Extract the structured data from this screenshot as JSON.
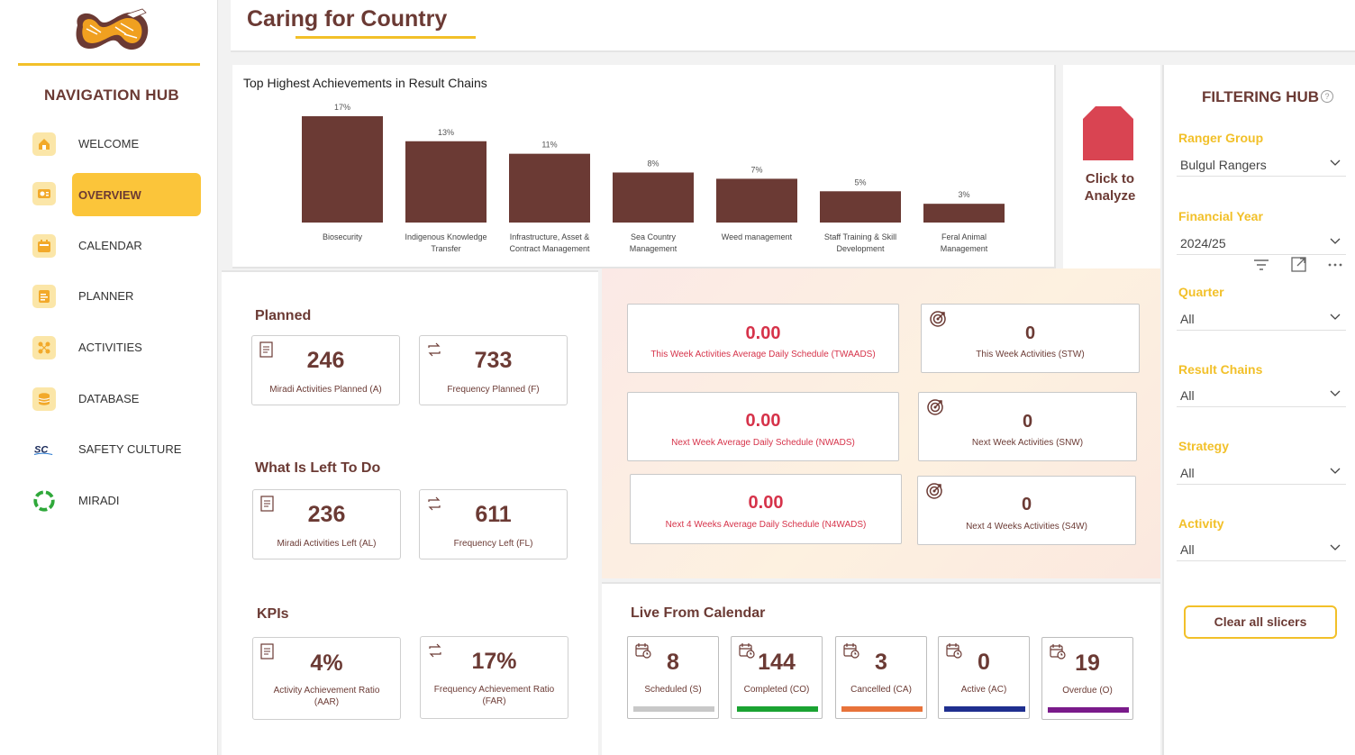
{
  "nav": {
    "title": "NAVIGATION HUB",
    "items": [
      {
        "label": "WELCOME",
        "icon": "home-icon"
      },
      {
        "label": "OVERVIEW",
        "icon": "dashboard-icon",
        "active": true
      },
      {
        "label": "CALENDAR",
        "icon": "calendar-icon"
      },
      {
        "label": "PLANNER",
        "icon": "planner-icon"
      },
      {
        "label": "ACTIVITIES",
        "icon": "activities-icon"
      },
      {
        "label": "DATABASE",
        "icon": "database-icon"
      },
      {
        "label": "SAFETY CULTURE",
        "icon": "safety-culture-logo-icon"
      },
      {
        "label": "MIRADI",
        "icon": "miradi-logo-icon"
      }
    ]
  },
  "header": {
    "title": "Caring for Country"
  },
  "chart_data": {
    "type": "bar",
    "title": "Top Highest Achievements in Result Chains",
    "categories": [
      [
        "Biosecurity"
      ],
      [
        "Indigenous Knowledge",
        "Transfer"
      ],
      [
        "Infrastructure, Asset &",
        "Contract Management"
      ],
      [
        "Sea Country",
        "Management"
      ],
      [
        "Weed management"
      ],
      [
        "Staff Training & Skill",
        "Development"
      ],
      [
        "Feral Animal",
        "Management"
      ]
    ],
    "values": [
      17,
      13,
      11,
      8,
      7,
      5,
      3
    ],
    "value_labels": [
      "17%",
      "13%",
      "11%",
      "8%",
      "7%",
      "5%",
      "3%"
    ],
    "unit": "%",
    "color": "#6b3a34"
  },
  "analyze": {
    "label_line1": "Click to",
    "label_line2": "Analyze",
    "color": "#d94452"
  },
  "planned": {
    "title": "Planned",
    "cards": [
      {
        "value": "246",
        "label": "Miradi Activities Planned (A)",
        "icon": "document-icon"
      },
      {
        "value": "733",
        "label": "Frequency Planned (F)",
        "icon": "repeat-icon"
      }
    ]
  },
  "left_todo": {
    "title": "What Is Left To Do",
    "cards": [
      {
        "value": "236",
        "label": "Miradi Activities Left (AL)",
        "icon": "document-icon"
      },
      {
        "value": "611",
        "label": "Frequency Left (FL)",
        "icon": "repeat-icon"
      }
    ]
  },
  "kpis": {
    "title": "KPIs",
    "cards": [
      {
        "value": "4%",
        "label_line1": "Activity Achievement Ratio",
        "label_line2": "(AAR)",
        "icon": "document-icon"
      },
      {
        "value": "17%",
        "label_line1": "Frequency Achievement Ratio",
        "label_line2": "(FAR)",
        "icon": "repeat-icon"
      }
    ]
  },
  "schedule": {
    "rows": [
      {
        "avg_value": "0.00",
        "avg_label": "This Week Activities Average Daily Schedule (TWAADS)",
        "count_value": "0",
        "count_label": "This Week Activities (STW)"
      },
      {
        "avg_value": "0.00",
        "avg_label": "Next Week Average Daily Schedule (NWADS)",
        "count_value": "0",
        "count_label": "Next Week Activities (SNW)"
      },
      {
        "avg_value": "0.00",
        "avg_label": "Next 4 Weeks Average Daily Schedule (N4WADS)",
        "count_value": "0",
        "count_label": "Next 4 Weeks Activities (S4W)"
      }
    ]
  },
  "live": {
    "title": "Live From Calendar",
    "cards": [
      {
        "value": "8",
        "label": "Scheduled (S)",
        "color": "#c8c8c8"
      },
      {
        "value": "144",
        "label": "Completed (CO)",
        "color": "#1aa332"
      },
      {
        "value": "3",
        "label": "Cancelled (CA)",
        "color": "#e8733a"
      },
      {
        "value": "0",
        "label": "Active (AC)",
        "color": "#1f2f8f"
      },
      {
        "value": "19",
        "label": "Overdue (O)",
        "color": "#7a1a8a"
      }
    ]
  },
  "filters": {
    "title": "FILTERING HUB",
    "help": "?",
    "fields": [
      {
        "label": "Ranger Group",
        "value": "Bulgul Rangers"
      },
      {
        "label": "Financial Year",
        "value": "2024/25"
      },
      {
        "label": "Quarter",
        "value": "All"
      },
      {
        "label": "Result Chains",
        "value": "All"
      },
      {
        "label": "Strategy",
        "value": "All"
      },
      {
        "label": "Activity",
        "value": "All"
      }
    ],
    "clear_label": "Clear all slicers"
  }
}
